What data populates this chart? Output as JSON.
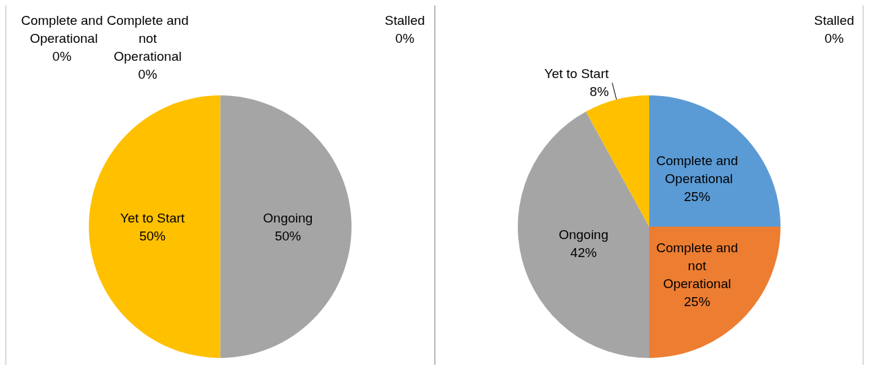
{
  "chart_data": [
    {
      "type": "pie",
      "categories": [
        "Complete and Operational",
        "Complete and not Operational",
        "Ongoing",
        "Yet to Start",
        "Stalled"
      ],
      "values": [
        0,
        0,
        50,
        50,
        0
      ],
      "value_labels": [
        "0%",
        "0%",
        "50%",
        "50%",
        "0%"
      ],
      "colors": [
        "#5b9bd5",
        "#ed7d31",
        "#a5a5a5",
        "#ffc000",
        "#4472c4"
      ],
      "legend": false
    },
    {
      "type": "pie",
      "categories": [
        "Complete and Operational",
        "Complete and not Operational",
        "Ongoing",
        "Yet to Start",
        "Stalled"
      ],
      "values": [
        25,
        25,
        42,
        8,
        0
      ],
      "value_labels": [
        "25%",
        "25%",
        "42%",
        "8%",
        "0%"
      ],
      "colors": [
        "#5b9bd5",
        "#ed7d31",
        "#a5a5a5",
        "#ffc000",
        "#4472c4"
      ],
      "legend": false
    }
  ]
}
